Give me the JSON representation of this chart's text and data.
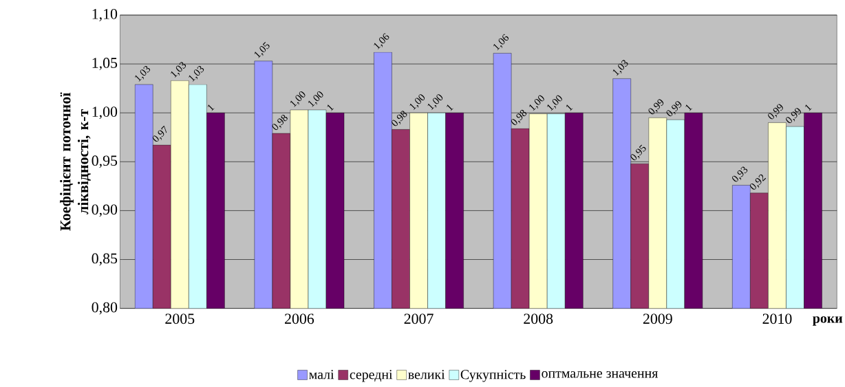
{
  "chart_data": {
    "type": "bar",
    "xlabel": "роки",
    "ylabel": "Коефіцієнт поточної ліквідності, к-т",
    "categories": [
      "2005",
      "2006",
      "2007",
      "2008",
      "2009",
      "2010"
    ],
    "series": [
      {
        "name": "малі",
        "color": "#9999ff",
        "values": [
          1.029,
          1.053,
          1.062,
          1.061,
          1.035,
          0.926
        ],
        "value_labels": [
          "1,03",
          "1,05",
          "1,06",
          "1,06",
          "1,03",
          "0,93"
        ]
      },
      {
        "name": "середні",
        "color": "#993366",
        "values": [
          0.967,
          0.979,
          0.983,
          0.984,
          0.948,
          0.918
        ],
        "value_labels": [
          "0,97",
          "0,98",
          "0,98",
          "0,98",
          "0,95",
          "0,92"
        ]
      },
      {
        "name": "великі",
        "color": "#ffffcc",
        "values": [
          1.033,
          1.003,
          1.0,
          0.999,
          0.995,
          0.99
        ],
        "value_labels": [
          "1,03",
          "1,00",
          "1,00",
          "1,00",
          "0,99",
          "0,99"
        ]
      },
      {
        "name": "Сукупність",
        "color": "#ccffff",
        "values": [
          1.029,
          1.003,
          1.0,
          0.999,
          0.993,
          0.986
        ],
        "value_labels": [
          "1,03",
          "1,00",
          "1,00",
          "1,00",
          "0,99",
          "0,99"
        ]
      },
      {
        "name": "оптмальне значення",
        "color": "#660066",
        "values": [
          1.0,
          1.0,
          1.0,
          1.0,
          1.0,
          1.0
        ],
        "value_labels": [
          "1",
          "1",
          "1",
          "1",
          "1",
          "1"
        ]
      }
    ],
    "ylim": [
      0.8,
      1.1
    ],
    "yticks": [
      {
        "value": 0.8,
        "label": "0,80"
      },
      {
        "value": 0.85,
        "label": "0,85"
      },
      {
        "value": 0.9,
        "label": "0,90"
      },
      {
        "value": 0.95,
        "label": "0,95"
      },
      {
        "value": 1.0,
        "label": "1,00"
      },
      {
        "value": 1.05,
        "label": "1,05"
      },
      {
        "value": 1.1,
        "label": "1,10"
      }
    ],
    "grid": "y",
    "legend": "bottom"
  }
}
